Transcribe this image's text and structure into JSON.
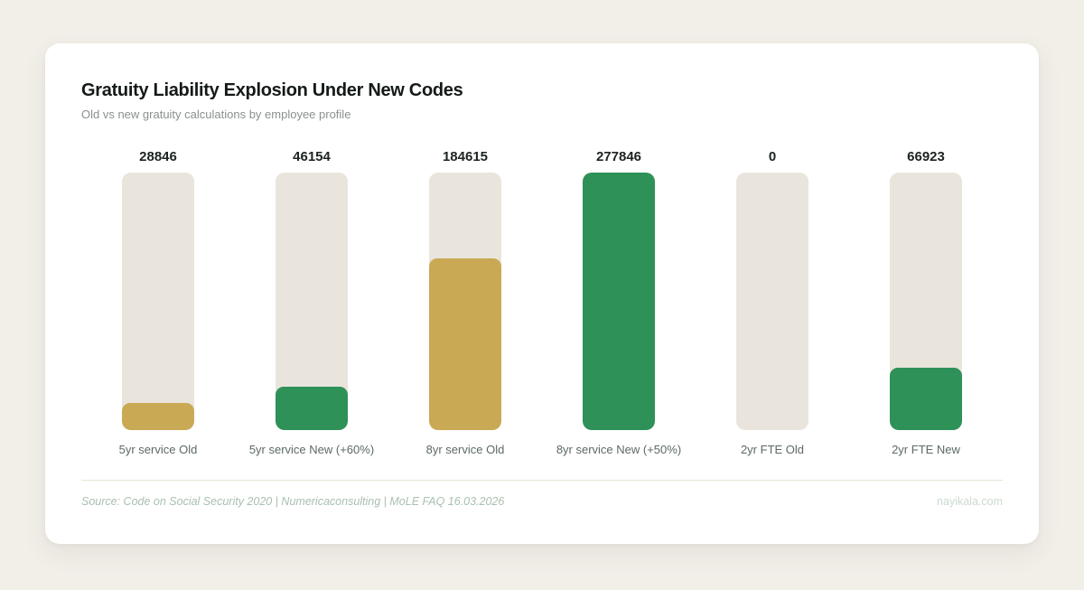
{
  "header": {
    "title": "Gratuity Liability Explosion Under New Codes",
    "subtitle": "Old vs new gratuity calculations by employee profile"
  },
  "chart_data": {
    "type": "bar",
    "title": "Gratuity Liability Explosion Under New Codes",
    "subtitle": "Old vs new gratuity calculations by employee profile",
    "categories": [
      "5yr service Old",
      "5yr service New (+60%)",
      "8yr service Old",
      "8yr service New (+50%)",
      "2yr FTE Old",
      "2yr FTE New"
    ],
    "values": [
      28846,
      46154,
      184615,
      277846,
      0,
      66923
    ],
    "value_labels": [
      "28846",
      "46154",
      "184615",
      "277846",
      "0",
      "66923"
    ],
    "bar_colors": [
      "#c9a953",
      "#2e9158",
      "#c9a953",
      "#2e9158",
      "#c9a953",
      "#2e9158"
    ],
    "track_color": "#e9e5dd",
    "xlabel": "",
    "ylabel": "",
    "ylim": [
      0,
      277846
    ],
    "grid": false,
    "legend": "none",
    "series_meaning": {
      "gold": "Old code calculation",
      "green": "New code calculation"
    }
  },
  "footer": {
    "source": "Source: Code on Social Security 2020 | Numericaconsulting | MoLE FAQ 16.03.2026",
    "watermark": "nayikala.com"
  },
  "colors": {
    "accent_gold": "#c9a953",
    "accent_green": "#2e9158",
    "bar_track": "#e9e5dd",
    "page_background": "#f2efe9",
    "card_background": "#ffffff"
  }
}
